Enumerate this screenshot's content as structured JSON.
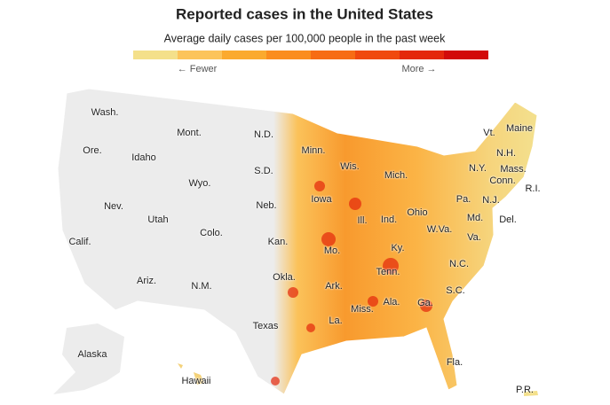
{
  "header": {
    "title": "Reported cases in the United States",
    "subtitle": "Average daily cases per 100,000 people in the past week"
  },
  "legend": {
    "colors": [
      "#f4e08a",
      "#fcc45a",
      "#fbaa2e",
      "#fb8d1e",
      "#f76c14",
      "#f0490e",
      "#e4270b",
      "#d20a0a"
    ],
    "low_label": "← Fewer",
    "high_label": "More →"
  },
  "states": [
    "Wash.",
    "Ore.",
    "Idaho",
    "Mont.",
    "Wyo.",
    "N.D.",
    "S.D.",
    "Minn.",
    "Wis.",
    "Mich.",
    "Nev.",
    "Utah",
    "Colo.",
    "Neb.",
    "Iowa",
    "Ill.",
    "Ind.",
    "Ohio",
    "Calif.",
    "Kan.",
    "Mo.",
    "Ky.",
    "W.Va.",
    "Va.",
    "Ariz.",
    "N.M.",
    "Okla.",
    "Ark.",
    "Tenn.",
    "N.C.",
    "S.C.",
    "Texas",
    "La.",
    "Miss.",
    "Ala.",
    "Ga.",
    "Fla.",
    "Alaska",
    "Hawaii",
    "Maine",
    "Vt.",
    "N.H.",
    "N.Y.",
    "Mass.",
    "Conn.",
    "R.I.",
    "Pa.",
    "N.J.",
    "Md.",
    "Del.",
    "P.R."
  ]
}
